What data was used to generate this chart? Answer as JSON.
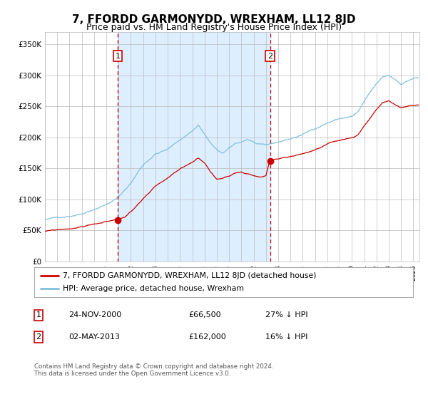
{
  "title": "7, FFORDD GARMONYDD, WREXHAM, LL12 8JD",
  "subtitle": "Price paid vs. HM Land Registry's House Price Index (HPI)",
  "title_fontsize": 11,
  "subtitle_fontsize": 9,
  "xlim_start": 1995.0,
  "xlim_end": 2025.5,
  "ylim_bottom": 0,
  "ylim_top": 370000,
  "yticks": [
    0,
    50000,
    100000,
    150000,
    200000,
    250000,
    300000,
    350000
  ],
  "ytick_labels": [
    "£0",
    "£50K",
    "£100K",
    "£150K",
    "£200K",
    "£250K",
    "£300K",
    "£350K"
  ],
  "sale1_date_num": 2000.917,
  "sale1_price": 66500,
  "sale1_label": "1",
  "sale2_date_num": 2013.33,
  "sale2_price": 162000,
  "sale2_label": "2",
  "hpi_color": "#7fbfdf",
  "price_color": "#cc0000",
  "shade_color": "#ddeeff",
  "vline1_color": "#cc0000",
  "vline2_color": "#cc0000",
  "legend_house": "7, FFORDD GARMONYDD, WREXHAM, LL12 8JD (detached house)",
  "legend_hpi": "HPI: Average price, detached house, Wrexham",
  "table_row1": [
    "1",
    "24-NOV-2000",
    "£66,500",
    "27% ↓ HPI"
  ],
  "table_row2": [
    "2",
    "02-MAY-2013",
    "£162,000",
    "16% ↓ HPI"
  ],
  "footnote": "Contains HM Land Registry data © Crown copyright and database right 2024.\nThis data is licensed under the Open Government Licence v3.0.",
  "background_color": "#ffffff",
  "grid_color": "#bbbbbb"
}
